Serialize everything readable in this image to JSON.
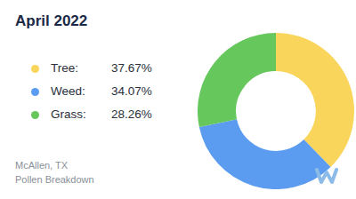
{
  "chart_data": {
    "type": "doughnut",
    "title": "April 2022",
    "annotations": [
      "McAllen, TX",
      "Pollen Breakdown"
    ],
    "categories": [
      "Tree:",
      "Weed:",
      "Grass:"
    ],
    "values": [
      37.67,
      34.07,
      28.26
    ],
    "value_labels": [
      "37.67%",
      "34.07%",
      "28.26%"
    ],
    "colors": [
      "#f9d55b",
      "#5b9cf0",
      "#66c75c"
    ],
    "legend": "left"
  }
}
